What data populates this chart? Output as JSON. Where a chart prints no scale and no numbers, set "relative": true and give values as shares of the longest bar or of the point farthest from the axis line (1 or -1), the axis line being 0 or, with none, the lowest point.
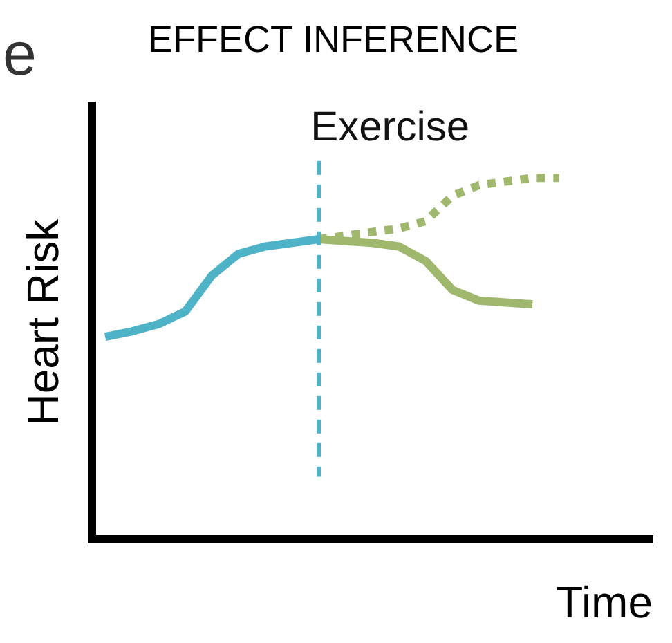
{
  "chart_data": {
    "type": "line",
    "title": "EFFECT INFERENCE",
    "xlabel": "Time",
    "ylabel": "Heart Risk",
    "annotations": [
      "e"
    ],
    "relative": true,
    "grid": false,
    "legend": false,
    "marker": "none",
    "categories": [
      null,
      null,
      null,
      null,
      null,
      null,
      null,
      null,
      null,
      null,
      null,
      null,
      null,
      null,
      null,
      null,
      null,
      null,
      null,
      null,
      null
    ],
    "series": [
      {
        "color": "#4fb3c8",
        "line_style": "solid",
        "values": [
          0.56,
          0.575,
          0.595,
          0.63,
          0.73,
          0.79,
          0.81,
          0.82,
          0.83,
          null,
          null,
          null,
          null,
          null,
          null,
          null,
          null,
          null,
          null,
          null,
          null
        ]
      },
      {
        "color": "#9fb86e",
        "line_style": "solid",
        "values": [
          null,
          null,
          null,
          null,
          null,
          null,
          null,
          null,
          0.83,
          0.825,
          0.82,
          0.81,
          0.77,
          0.69,
          0.66,
          0.655,
          0.65,
          null,
          null,
          null,
          null
        ]
      },
      {
        "color": "#9fb86e",
        "line_style": "dotted",
        "values": [
          null,
          null,
          null,
          null,
          null,
          null,
          null,
          null,
          0.83,
          0.84,
          0.85,
          0.86,
          0.88,
          0.95,
          0.98,
          0.99,
          1.0,
          1.0,
          null,
          null,
          null
        ]
      }
    ],
    "ref_lines": [
      {
        "axis": "x",
        "label": "Exercise",
        "color": "#4fb3c8",
        "line_style": "dashed"
      }
    ]
  }
}
